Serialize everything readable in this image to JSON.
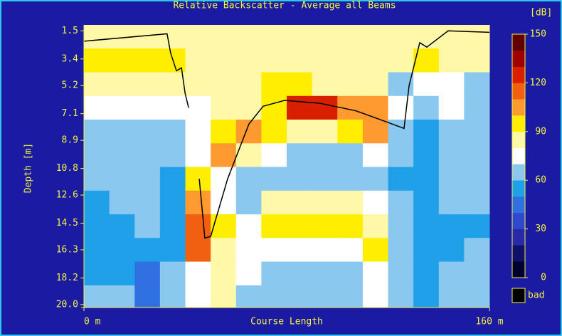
{
  "chart_data": {
    "type": "heatmap",
    "title": "Relative Backscatter - Average all Beams",
    "unit_label": "[dB]",
    "x_label": "Course Length",
    "y_label": "Depth [m]",
    "xlim": [
      0,
      160
    ],
    "xticks": [
      {
        "value": 0,
        "label": "0 m"
      },
      {
        "value": 160,
        "label": "160 m"
      }
    ],
    "ylim": [
      1.1,
      20.2
    ],
    "yticks": [
      1.5,
      3.4,
      5.2,
      7.1,
      8.9,
      10.8,
      12.6,
      14.5,
      16.3,
      18.2,
      {
        "value": 20,
        "label": "20.0"
      }
    ],
    "xbins": [
      0,
      10,
      20,
      30,
      40,
      50,
      60,
      70,
      80,
      90,
      100,
      110,
      120,
      130,
      140,
      150,
      160
    ],
    "ybins": [
      1.1,
      2.7,
      4.3,
      5.9,
      7.5,
      9.1,
      10.7,
      12.3,
      13.9,
      15.5,
      17.1,
      18.7,
      20.2
    ],
    "z": [
      [
        85,
        85,
        85,
        85,
        85,
        85,
        85,
        85,
        85,
        85,
        85,
        85,
        85,
        85,
        85,
        85
      ],
      [
        92,
        92,
        92,
        92,
        85,
        85,
        85,
        85,
        85,
        85,
        85,
        85,
        85,
        95,
        85,
        85
      ],
      [
        85,
        85,
        85,
        85,
        85,
        85,
        85,
        92,
        92,
        85,
        85,
        85,
        65,
        75,
        75,
        65
      ],
      [
        75,
        75,
        75,
        75,
        75,
        85,
        85,
        95,
        120,
        120,
        105,
        105,
        75,
        65,
        75,
        65
      ],
      [
        65,
        65,
        65,
        65,
        75,
        95,
        105,
        90,
        85,
        85,
        92,
        105,
        65,
        55,
        65,
        65
      ],
      [
        65,
        65,
        65,
        65,
        75,
        105,
        85,
        75,
        65,
        65,
        65,
        75,
        65,
        55,
        65,
        65
      ],
      [
        65,
        65,
        65,
        55,
        95,
        75,
        65,
        65,
        65,
        65,
        65,
        65,
        55,
        55,
        65,
        65
      ],
      [
        55,
        65,
        65,
        55,
        105,
        75,
        65,
        85,
        85,
        85,
        85,
        75,
        65,
        55,
        65,
        65
      ],
      [
        55,
        55,
        65,
        55,
        115,
        92,
        75,
        93,
        93,
        93,
        93,
        85,
        65,
        55,
        55,
        55
      ],
      [
        55,
        55,
        55,
        55,
        110,
        85,
        75,
        75,
        75,
        75,
        75,
        92,
        65,
        55,
        55,
        65
      ],
      [
        55,
        55,
        45,
        65,
        75,
        85,
        75,
        65,
        65,
        65,
        65,
        75,
        65,
        55,
        65,
        65
      ],
      [
        65,
        65,
        45,
        65,
        75,
        85,
        65,
        65,
        65,
        65,
        65,
        75,
        65,
        55,
        65,
        65
      ]
    ],
    "clim": [
      0,
      150
    ],
    "cticks": [
      0,
      30,
      60,
      90,
      120,
      150
    ],
    "ccolors": [
      "#000030",
      "#10106a",
      "#2828a8",
      "#3048d0",
      "#3070e0",
      "#20a0e8",
      "#8ac8f0",
      "#ffffff",
      "#fff8a8",
      "#ffee00",
      "#ff9a30",
      "#f06010",
      "#d82000",
      "#a00000",
      "#600000"
    ],
    "bad_label": "bad",
    "bad_color": "#000000",
    "line": {
      "color": "#000000",
      "x": [
        0,
        32.8,
        34.2,
        36.5,
        38.5,
        39.9,
        41.3,
        null,
        45.5,
        47.7,
        50,
        56.7,
        65.1,
        70.7,
        79.2,
        93.2,
        107.2,
        118.5,
        126.3,
        128.3,
        132.5,
        135.3,
        143.7,
        160
      ],
      "y": [
        2.2,
        1.7,
        3.0,
        4.2,
        4.0,
        5.7,
        6.7,
        null,
        11.5,
        15.5,
        15.4,
        11.5,
        7.8,
        6.6,
        6.2,
        6.4,
        6.9,
        7.6,
        8.1,
        5.2,
        2.3,
        2.6,
        1.5,
        1.6
      ]
    }
  }
}
